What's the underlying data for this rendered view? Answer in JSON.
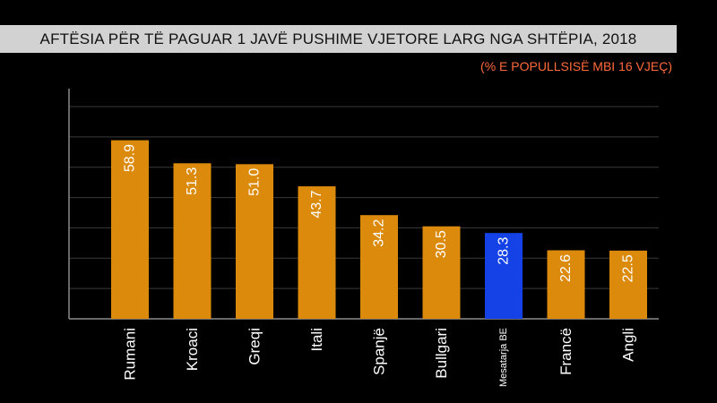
{
  "header": {
    "title": "AFTËSIA PËR TË PAGUAR 1 JAVË PUSHIME VJETORE LARG NGA SHTËPIA, 2018",
    "subtitle": "(% E POPULLSISË MBI 16 VJEÇ)"
  },
  "chart_data": {
    "type": "bar",
    "title": "AFTËSIA PËR TË PAGUAR 1 JAVË PUSHIME VJETORE LARG NGA SHTËPIA, 2018",
    "subtitle": "(% E POPULLSISË MBI 16 VJEÇ)",
    "categories": [
      "Rumani",
      "Kroaci",
      "Greqi",
      "Itali",
      "Spanjë",
      "Bullgari",
      "Mesatarja BE",
      "Francë",
      "Angli"
    ],
    "values": [
      58.9,
      51.3,
      51.0,
      43.7,
      34.2,
      30.5,
      28.3,
      22.6,
      22.5
    ],
    "ylim": [
      0,
      70
    ],
    "grid": true,
    "highlight_category": "Mesatarja BE",
    "colors": {
      "bar": "#dc8a0b",
      "highlight": "#1442e6",
      "label": "#ffffff",
      "grid": "#3a3a3a",
      "axis": "#8a8a8a"
    }
  }
}
